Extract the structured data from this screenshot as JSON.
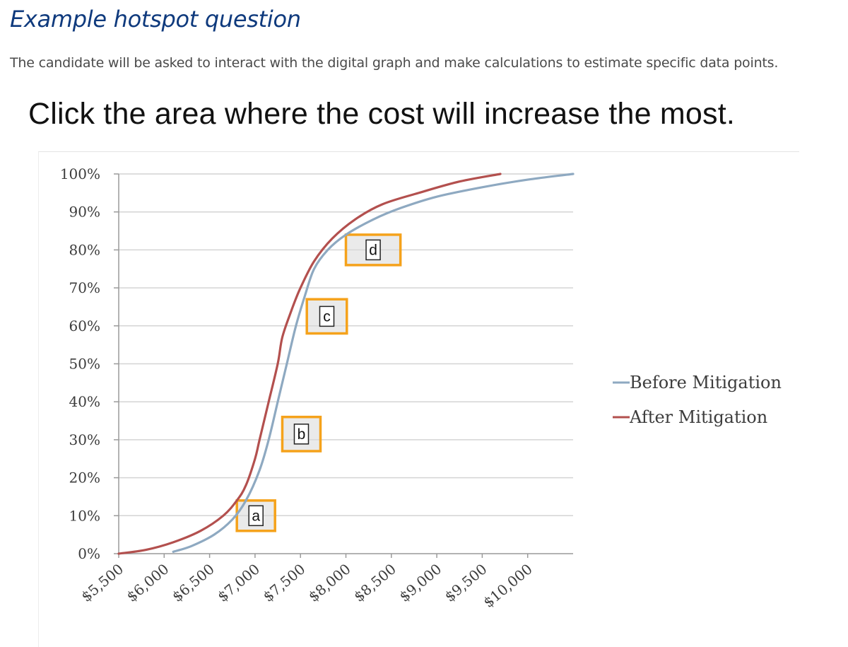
{
  "page": {
    "title": "Example hotspot question",
    "intro": "The candidate will be asked to interact with the digital graph and make calculations to estimate specific data points.",
    "prompt": "Click the area where the cost will increase the most."
  },
  "colors": {
    "title": "#0f3a7d",
    "before": "#8ea9c1",
    "after": "#b3504e",
    "hotspot_border": "#f5a21b",
    "hotspot_fill": "#d9d9d9",
    "grid": "#d4d4d4"
  },
  "chart_data": {
    "type": "line",
    "title": "",
    "xlabel": "",
    "ylabel": "",
    "x_ticks": [
      "$5,500",
      "$6,000",
      "$6,500",
      "$7,000",
      "$7,500",
      "$8,000",
      "$8,500",
      "$9,000",
      "$9,500",
      "$10,000"
    ],
    "y_ticks": [
      "0%",
      "10%",
      "20%",
      "30%",
      "40%",
      "50%",
      "60%",
      "70%",
      "80%",
      "90%",
      "100%"
    ],
    "xlim": [
      5500,
      10500
    ],
    "ylim": [
      0,
      100
    ],
    "grid": "horizontal",
    "legend_position": "right",
    "series": [
      {
        "name": "Before Mitigation",
        "color": "#8ea9c1",
        "points": [
          [
            6100,
            0.5
          ],
          [
            6300,
            2
          ],
          [
            6550,
            5
          ],
          [
            6750,
            9
          ],
          [
            6900,
            14
          ],
          [
            7050,
            22
          ],
          [
            7150,
            30
          ],
          [
            7250,
            40
          ],
          [
            7350,
            50
          ],
          [
            7450,
            60
          ],
          [
            7550,
            68
          ],
          [
            7650,
            75
          ],
          [
            7800,
            80
          ],
          [
            8000,
            84
          ],
          [
            8300,
            88
          ],
          [
            8600,
            91
          ],
          [
            9000,
            94
          ],
          [
            9500,
            96.5
          ],
          [
            10000,
            98.5
          ],
          [
            10500,
            100
          ]
        ]
      },
      {
        "name": "After Mitigation",
        "color": "#b3504e",
        "points": [
          [
            5500,
            0
          ],
          [
            5800,
            1
          ],
          [
            6100,
            3
          ],
          [
            6400,
            6
          ],
          [
            6650,
            10
          ],
          [
            6800,
            14
          ],
          [
            6900,
            18
          ],
          [
            7000,
            25
          ],
          [
            7050,
            30
          ],
          [
            7150,
            40
          ],
          [
            7250,
            50
          ],
          [
            7300,
            57
          ],
          [
            7400,
            64
          ],
          [
            7500,
            70
          ],
          [
            7650,
            77
          ],
          [
            7850,
            83
          ],
          [
            8100,
            88
          ],
          [
            8400,
            92
          ],
          [
            8800,
            95
          ],
          [
            9250,
            98
          ],
          [
            9700,
            100
          ]
        ]
      }
    ],
    "hotspots": [
      {
        "label": "a",
        "x": [
          6800,
          7220
        ],
        "y": [
          6,
          14
        ]
      },
      {
        "label": "b",
        "x": [
          7300,
          7720
        ],
        "y": [
          27,
          36
        ]
      },
      {
        "label": "c",
        "x": [
          7570,
          8010
        ],
        "y": [
          58,
          67
        ]
      },
      {
        "label": "d",
        "x": [
          8000,
          8600
        ],
        "y": [
          76,
          84
        ]
      }
    ]
  }
}
